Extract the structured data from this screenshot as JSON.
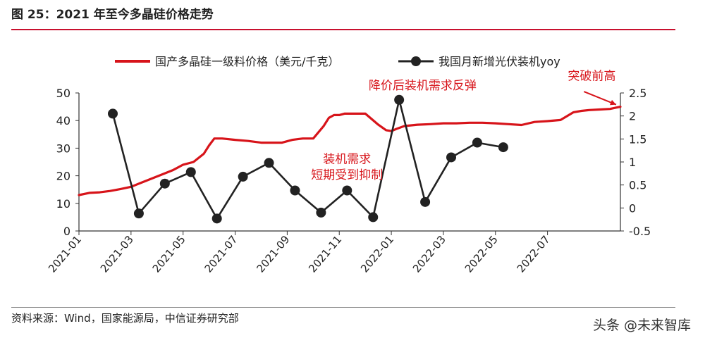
{
  "figure": {
    "title": "图 25：2021 年至今多晶硅价格走势",
    "source": "资料来源：Wind，国家能源局，中信证券研究部",
    "watermark": "头条 @未来智库"
  },
  "colors": {
    "price": "#d7141a",
    "yoy": "#222222",
    "accent": "#c8102e"
  },
  "chart_data": {
    "type": "line",
    "title": "2021 年至今多晶硅价格走势",
    "x_labels": [
      "2021-01",
      "2021-03",
      "2021-05",
      "2021-07",
      "2021-09",
      "2021-11",
      "2022-01",
      "2022-03",
      "2022-05",
      "2022-07"
    ],
    "y_left": {
      "label": "国产多晶硅一级料价格（美元/千克）",
      "range": [
        0,
        50
      ],
      "ticks": [
        "0",
        "10",
        "20",
        "30",
        "40",
        "50"
      ]
    },
    "y_right": {
      "label": "我国月新增光伏装机yoy",
      "range": [
        -0.5,
        2.5
      ],
      "ticks": [
        "-0.5",
        "0",
        "0.5",
        "1",
        "1.5",
        "2",
        "2.5"
      ]
    },
    "series": [
      {
        "name": "国产多晶硅一级料价格（美元/千克）",
        "axis": "left",
        "style": "line",
        "x": [
          0,
          0.4,
          0.8,
          1.2,
          1.6,
          2.0,
          2.4,
          2.8,
          3.2,
          3.6,
          4.0,
          4.4,
          4.8,
          5.0,
          5.2,
          5.5,
          6.0,
          6.5,
          7.0,
          7.5,
          7.8,
          8.0,
          8.2,
          8.6,
          9.0,
          9.4,
          9.6,
          9.8,
          10.0,
          10.2,
          10.5,
          11.0,
          11.5,
          11.8,
          12.0,
          12.2,
          12.5,
          13.0,
          13.5,
          14.0,
          14.5,
          15.0,
          15.5,
          16.0,
          16.5,
          17.0,
          17.5,
          18.0,
          18.5,
          19.0,
          19.3,
          19.6,
          20.0,
          20.4,
          20.8
        ],
        "values": [
          13,
          13.8,
          14,
          14.5,
          15.2,
          16,
          17.5,
          19,
          20.5,
          22,
          24,
          25,
          28,
          31,
          33.5,
          33.5,
          33,
          32.6,
          32,
          32,
          32,
          32.5,
          33,
          33.5,
          33.5,
          38,
          41,
          42,
          42,
          42.5,
          42.5,
          42.5,
          38.5,
          36.5,
          36.2,
          37,
          38,
          38.5,
          38.7,
          39,
          39,
          39.2,
          39.2,
          39,
          38.7,
          38.4,
          39.5,
          39.8,
          40.2,
          43,
          43.5,
          43.8,
          44,
          44.2,
          45
        ]
      },
      {
        "name": "我国月新增光伏装机yoy",
        "axis": "right",
        "style": "line-marker",
        "x": [
          1.3,
          2.3,
          3.3,
          4.3,
          5.3,
          6.3,
          7.3,
          8.3,
          9.3,
          10.3,
          11.3,
          12.3,
          13.3,
          14.3,
          15.3,
          16.3
        ],
        "values": [
          2.05,
          -0.12,
          0.53,
          0.78,
          -0.23,
          0.68,
          0.98,
          0.38,
          -0.1,
          0.38,
          -0.2,
          2.35,
          0.13,
          1.1,
          1.42,
          1.32
        ]
      }
    ],
    "annotations": [
      {
        "text": "装机需求",
        "x": 10.3,
        "y_right": 0.98
      },
      {
        "text": "短期受到抑制",
        "x": 10.3,
        "y_right": 0.63
      },
      {
        "text": "降价后装机需求反弹",
        "x": 13.2,
        "y_right": 2.58
      },
      {
        "text": "突破前高",
        "x": 19.7,
        "y_right": 2.78
      }
    ],
    "legend_position": "top"
  }
}
